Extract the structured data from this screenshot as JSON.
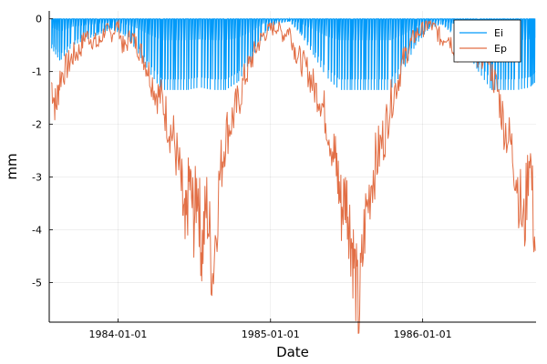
{
  "chart_data": {
    "type": "line",
    "xlabel": "Date",
    "ylabel": "mm",
    "x_range": [
      "1983-07-20",
      "1986-09-30"
    ],
    "ylim": [
      -5.75,
      0.15
    ],
    "x_ticks": [
      "1984-01-01",
      "1985-01-01",
      "1986-01-01"
    ],
    "y_ticks": [
      0,
      -1,
      -2,
      -3,
      -4,
      -5
    ],
    "y_tick_labels": [
      "0",
      "-1",
      "-2",
      "-3",
      "-4",
      "-5"
    ],
    "grid": true,
    "legend_position": "top-right",
    "series": [
      {
        "name": "Ei",
        "color": "#009af9",
        "min_value": -1.35,
        "x": [
          "1983-07-25",
          "1983-08-15",
          "1983-09-15",
          "1983-10-15",
          "1983-11-15",
          "1983-12-15",
          "1984-01-15",
          "1984-02-15",
          "1984-03-15",
          "1984-04-15",
          "1984-05-15",
          "1984-06-15",
          "1984-07-15",
          "1984-08-15",
          "1984-09-15",
          "1984-10-15",
          "1984-11-15",
          "1984-12-15",
          "1985-01-15",
          "1985-02-15",
          "1985-03-15",
          "1985-04-15",
          "1985-05-15",
          "1985-06-15",
          "1985-07-15",
          "1985-08-15",
          "1985-09-15",
          "1985-10-15",
          "1985-11-15",
          "1985-12-15",
          "1986-01-15",
          "1986-02-15",
          "1986-03-15",
          "1986-04-15",
          "1986-05-15",
          "1986-06-15",
          "1986-07-15",
          "1986-08-15",
          "1986-09-15",
          "1986-09-28"
        ],
        "y": [
          -0.55,
          -0.8,
          -0.5,
          -0.4,
          -0.3,
          -0.2,
          -0.3,
          -0.6,
          -1.0,
          -1.35,
          -1.35,
          -1.35,
          -1.3,
          -1.35,
          -1.35,
          -1.2,
          -0.8,
          -0.3,
          -0.1,
          -0.05,
          -0.3,
          -0.7,
          -1.1,
          -1.35,
          -1.35,
          -1.35,
          -1.35,
          -1.35,
          -1.0,
          -0.5,
          -0.2,
          -0.1,
          -0.3,
          -0.6,
          -1.0,
          -1.35,
          -1.35,
          -1.35,
          -1.3,
          -1.2
        ]
      },
      {
        "name": "Ep",
        "color": "#e26f46",
        "x": [
          "1983-07-25",
          "1983-08-05",
          "1983-08-15",
          "1983-09-01",
          "1983-09-15",
          "1983-10-01",
          "1983-10-15",
          "1983-11-01",
          "1983-11-15",
          "1983-12-01",
          "1983-12-15",
          "1984-01-01",
          "1984-01-15",
          "1984-02-01",
          "1984-02-15",
          "1984-03-01",
          "1984-03-15",
          "1984-04-01",
          "1984-04-15",
          "1984-05-01",
          "1984-05-15",
          "1984-06-01",
          "1984-06-10",
          "1984-06-20",
          "1984-07-01",
          "1984-07-10",
          "1984-07-20",
          "1984-08-01",
          "1984-08-15",
          "1984-09-01",
          "1984-09-15",
          "1984-10-01",
          "1984-10-15",
          "1984-11-01",
          "1984-11-15",
          "1984-12-01",
          "1984-12-15",
          "1985-01-01",
          "1985-01-15",
          "1985-02-01",
          "1985-02-15",
          "1985-03-01",
          "1985-03-15",
          "1985-04-01",
          "1985-04-15",
          "1985-05-01",
          "1985-05-15",
          "1985-06-01",
          "1985-06-10",
          "1985-06-20",
          "1985-07-01",
          "1985-07-10",
          "1985-07-20",
          "1985-08-01",
          "1985-08-15",
          "1985-09-01",
          "1985-09-15",
          "1985-10-01",
          "1985-10-15",
          "1985-11-01",
          "1985-11-15",
          "1985-12-01",
          "1985-12-15",
          "1986-01-01",
          "1986-01-15",
          "1986-02-01",
          "1986-02-15",
          "1986-03-01",
          "1986-03-15",
          "1986-04-01",
          "1986-04-15",
          "1986-05-01",
          "1986-05-15",
          "1986-06-01",
          "1986-06-15",
          "1986-07-01",
          "1986-07-15",
          "1986-08-01",
          "1986-08-15",
          "1986-09-01",
          "1986-09-15",
          "1986-09-28"
        ],
        "y": [
          -1.2,
          -1.7,
          -1.1,
          -0.9,
          -0.7,
          -0.6,
          -0.3,
          -0.4,
          -0.5,
          -0.2,
          -0.3,
          -0.1,
          -0.6,
          -0.3,
          -0.5,
          -0.7,
          -1.0,
          -1.4,
          -1.5,
          -2.0,
          -2.3,
          -3.2,
          -4.25,
          -3.0,
          -3.8,
          -3.1,
          -4.4,
          -3.5,
          -4.8,
          -3.0,
          -2.2,
          -1.9,
          -1.6,
          -1.1,
          -0.8,
          -0.5,
          -0.3,
          -0.2,
          -0.15,
          -0.3,
          -0.2,
          -0.6,
          -0.8,
          -1.0,
          -1.3,
          -1.5,
          -1.9,
          -2.5,
          -2.9,
          -3.6,
          -3.3,
          -3.9,
          -4.6,
          -5.6,
          -3.9,
          -3.0,
          -2.6,
          -2.2,
          -1.6,
          -1.2,
          -0.8,
          -0.5,
          -0.3,
          -0.2,
          -0.1,
          -0.2,
          -0.4,
          -0.3,
          -0.5,
          -0.7,
          -0.4,
          -0.6,
          -0.9,
          -0.5,
          -1.0,
          -1.4,
          -2.0,
          -2.4,
          -3.0,
          -4.05,
          -2.4,
          -4.4
        ]
      }
    ]
  }
}
